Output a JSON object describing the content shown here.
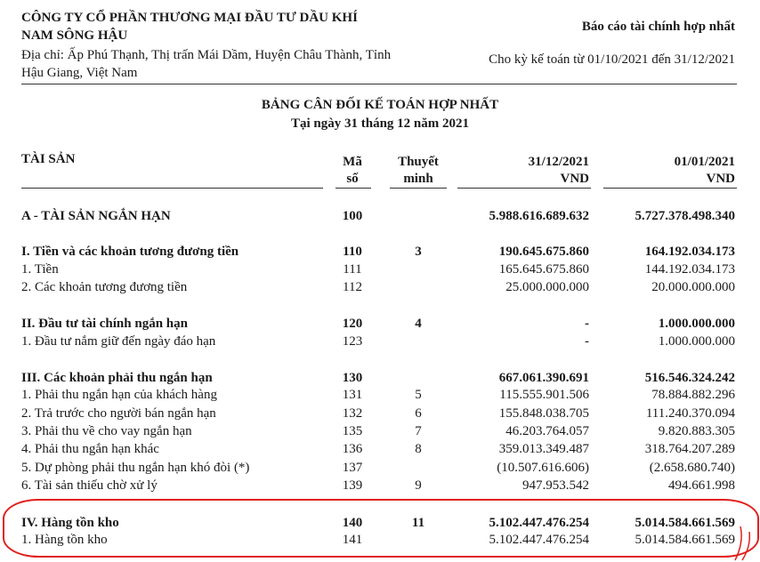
{
  "header": {
    "company_line1": "CÔNG TY CỔ PHẦN THƯƠNG MẠI ĐẦU TƯ DẦU KHÍ",
    "company_line2": "NAM SÔNG HẬU",
    "address_line1": "Địa chỉ: Ấp Phú Thạnh, Thị trấn Mái Dầm, Huyện Châu Thành, Tỉnh",
    "address_line2": "Hậu Giang, Việt Nam",
    "report_type": "Báo cáo tài chính hợp nhất",
    "period": "Cho kỳ kế toán từ 01/10/2021 đến 31/12/2021"
  },
  "title": "BẢNG CÂN ĐỐI KẾ TOÁN HỢP NHẤT",
  "subtitle": "Tại ngày 31 tháng 12 năm 2021",
  "columns": {
    "assets": "TÀI SẢN",
    "code_1": "Mã",
    "code_2": "số",
    "note_1": "Thuyết",
    "note_2": "minh",
    "col1_date": "31/12/2021",
    "col1_unit": "VND",
    "col2_date": "01/01/2021",
    "col2_unit": "VND"
  },
  "rows": [
    {
      "label": "A - TÀI SẢN NGẮN HẠN",
      "code": "100",
      "note": "",
      "v1": "5.988.616.689.632",
      "v2": "5.727.378.498.340",
      "bold": true
    },
    {
      "label": "I. Tiền và các khoản tương đương tiền",
      "code": "110",
      "note": "3",
      "v1": "190.645.675.860",
      "v2": "164.192.034.173",
      "bold": true
    },
    {
      "label": "1. Tiền",
      "code": "111",
      "note": "",
      "v1": "165.645.675.860",
      "v2": "144.192.034.173",
      "bold": false
    },
    {
      "label": "2. Các khoản tương đương tiền",
      "code": "112",
      "note": "",
      "v1": "25.000.000.000",
      "v2": "20.000.000.000",
      "bold": false
    },
    {
      "label": "II. Đầu tư tài chính ngắn hạn",
      "code": "120",
      "note": "4",
      "v1": "-",
      "v2": "1.000.000.000",
      "bold": true
    },
    {
      "label": "1. Đầu tư nắm giữ đến ngày đáo hạn",
      "code": "123",
      "note": "",
      "v1": "-",
      "v2": "1.000.000.000",
      "bold": false
    },
    {
      "label": "III. Các khoản phải thu ngắn hạn",
      "code": "130",
      "note": "",
      "v1": "667.061.390.691",
      "v2": "516.546.324.242",
      "bold": true
    },
    {
      "label": "1. Phải thu ngắn hạn của khách hàng",
      "code": "131",
      "note": "5",
      "v1": "115.555.901.506",
      "v2": "78.884.882.296",
      "bold": false
    },
    {
      "label": "2. Trả trước cho người bán ngắn hạn",
      "code": "132",
      "note": "6",
      "v1": "155.848.038.705",
      "v2": "111.240.370.094",
      "bold": false
    },
    {
      "label": "3. Phải thu về cho vay ngắn hạn",
      "code": "135",
      "note": "7",
      "v1": "46.203.764.057",
      "v2": "9.820.883.305",
      "bold": false
    },
    {
      "label": "4. Phải thu ngắn hạn khác",
      "code": "136",
      "note": "8",
      "v1": "359.013.349.487",
      "v2": "318.764.207.289",
      "bold": false
    },
    {
      "label": "5. Dự phòng phải thu ngắn hạn khó đòi (*)",
      "code": "137",
      "note": "",
      "v1": "(10.507.616.606)",
      "v2": "(2.658.680.740)",
      "bold": false
    },
    {
      "label": "6. Tài sản thiếu chờ xử lý",
      "code": "139",
      "note": "9",
      "v1": "947.953.542",
      "v2": "494.661.998",
      "bold": false
    },
    {
      "label": "IV. Hàng tồn kho",
      "code": "140",
      "note": "11",
      "v1": "5.102.447.476.254",
      "v2": "5.014.584.661.569",
      "bold": true
    },
    {
      "label": "1. Hàng tồn kho",
      "code": "141",
      "note": "",
      "v1": "5.102.447.476.254",
      "v2": "5.014.584.661.569",
      "bold": false
    }
  ],
  "highlight_color": "#e0201e"
}
